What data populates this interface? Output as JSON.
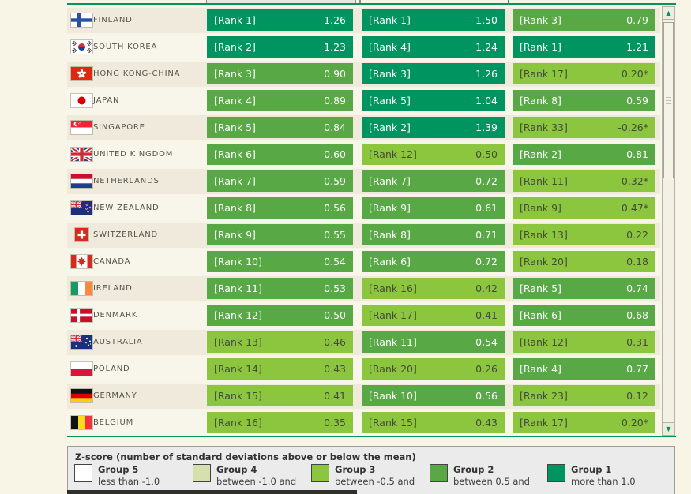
{
  "colors": {
    "group1_dark_green": "#009560",
    "group2_medium_green": "#58a846",
    "group3_light_green": "#8cc63e",
    "group4_pale_green": "#d4e0ad",
    "group5_white": "#ffffff",
    "page_background": "#f8f4e6",
    "table_border_green": "#00945e"
  },
  "icons": {
    "scroll_up": "▲",
    "scroll_down": "▼"
  },
  "table": {
    "rows": [
      {
        "country": "FINLAND",
        "flag": "finland",
        "cells": [
          {
            "rank": "[Rank 1]",
            "value": "1.26",
            "group": 1
          },
          {
            "rank": "[Rank 1]",
            "value": "1.50",
            "group": 1
          },
          {
            "rank": "[Rank 3]",
            "value": "0.79",
            "group": 2
          }
        ]
      },
      {
        "country": "SOUTH KOREA",
        "flag": "southkorea",
        "cells": [
          {
            "rank": "[Rank 2]",
            "value": "1.23",
            "group": 1
          },
          {
            "rank": "[Rank 4]",
            "value": "1.24",
            "group": 1
          },
          {
            "rank": "[Rank 1]",
            "value": "1.21",
            "group": 1
          }
        ]
      },
      {
        "country": "HONG KONG-CHINA",
        "flag": "hongkong",
        "cells": [
          {
            "rank": "[Rank 3]",
            "value": "0.90",
            "group": 2
          },
          {
            "rank": "[Rank 3]",
            "value": "1.26",
            "group": 1
          },
          {
            "rank": "[Rank 17]",
            "value": "0.20*",
            "group": 3
          }
        ]
      },
      {
        "country": "JAPAN",
        "flag": "japan",
        "cells": [
          {
            "rank": "[Rank 4]",
            "value": "0.89",
            "group": 2
          },
          {
            "rank": "[Rank 5]",
            "value": "1.04",
            "group": 1
          },
          {
            "rank": "[Rank 8]",
            "value": "0.59",
            "group": 2
          }
        ]
      },
      {
        "country": "SINGAPORE",
        "flag": "singapore",
        "cells": [
          {
            "rank": "[Rank 5]",
            "value": "0.84",
            "group": 2
          },
          {
            "rank": "[Rank 2]",
            "value": "1.39",
            "group": 1
          },
          {
            "rank": "[Rank 33]",
            "value": "-0.26*",
            "group": 3
          }
        ]
      },
      {
        "country": "UNITED KINGDOM",
        "flag": "uk",
        "cells": [
          {
            "rank": "[Rank 6]",
            "value": "0.60",
            "group": 2
          },
          {
            "rank": "[Rank 12]",
            "value": "0.50",
            "group": 3
          },
          {
            "rank": "[Rank 2]",
            "value": "0.81",
            "group": 2
          }
        ]
      },
      {
        "country": "NETHERLANDS",
        "flag": "netherlands",
        "cells": [
          {
            "rank": "[Rank 7]",
            "value": "0.59",
            "group": 2
          },
          {
            "rank": "[Rank 7]",
            "value": "0.72",
            "group": 2
          },
          {
            "rank": "[Rank 11]",
            "value": "0.32*",
            "group": 3
          }
        ]
      },
      {
        "country": "NEW ZEALAND",
        "flag": "newzealand",
        "cells": [
          {
            "rank": "[Rank 8]",
            "value": "0.56",
            "group": 2
          },
          {
            "rank": "[Rank 9]",
            "value": "0.61",
            "group": 2
          },
          {
            "rank": "[Rank 9]",
            "value": "0.47*",
            "group": 3
          }
        ]
      },
      {
        "country": "SWITZERLAND",
        "flag": "switzerland",
        "cells": [
          {
            "rank": "[Rank 9]",
            "value": "0.55",
            "group": 2
          },
          {
            "rank": "[Rank 8]",
            "value": "0.71",
            "group": 2
          },
          {
            "rank": "[Rank 13]",
            "value": "0.22",
            "group": 3
          }
        ]
      },
      {
        "country": "CANADA",
        "flag": "canada",
        "cells": [
          {
            "rank": "[Rank 10]",
            "value": "0.54",
            "group": 2
          },
          {
            "rank": "[Rank 6]",
            "value": "0.72",
            "group": 2
          },
          {
            "rank": "[Rank 20]",
            "value": "0.18",
            "group": 3
          }
        ]
      },
      {
        "country": "IRELAND",
        "flag": "ireland",
        "cells": [
          {
            "rank": "[Rank 11]",
            "value": "0.53",
            "group": 2
          },
          {
            "rank": "[Rank 16]",
            "value": "0.42",
            "group": 3
          },
          {
            "rank": "[Rank 5]",
            "value": "0.74",
            "group": 2
          }
        ]
      },
      {
        "country": "DENMARK",
        "flag": "denmark",
        "cells": [
          {
            "rank": "[Rank 12]",
            "value": "0.50",
            "group": 2
          },
          {
            "rank": "[Rank 17]",
            "value": "0.41",
            "group": 3
          },
          {
            "rank": "[Rank 6]",
            "value": "0.68",
            "group": 2
          }
        ]
      },
      {
        "country": "AUSTRALIA",
        "flag": "australia",
        "cells": [
          {
            "rank": "[Rank 13]",
            "value": "0.46",
            "group": 3
          },
          {
            "rank": "[Rank 11]",
            "value": "0.54",
            "group": 2
          },
          {
            "rank": "[Rank 12]",
            "value": "0.31",
            "group": 3
          }
        ]
      },
      {
        "country": "POLAND",
        "flag": "poland",
        "cells": [
          {
            "rank": "[Rank 14]",
            "value": "0.43",
            "group": 3
          },
          {
            "rank": "[Rank 20]",
            "value": "0.26",
            "group": 3
          },
          {
            "rank": "[Rank 4]",
            "value": "0.77",
            "group": 2
          }
        ]
      },
      {
        "country": "GERMANY",
        "flag": "germany",
        "cells": [
          {
            "rank": "[Rank 15]",
            "value": "0.41",
            "group": 3
          },
          {
            "rank": "[Rank 10]",
            "value": "0.56",
            "group": 2
          },
          {
            "rank": "[Rank 23]",
            "value": "0.12",
            "group": 3
          }
        ]
      },
      {
        "country": "BELGIUM",
        "flag": "belgium",
        "cells": [
          {
            "rank": "[Rank 16]",
            "value": "0.35",
            "group": 3
          },
          {
            "rank": "[Rank 15]",
            "value": "0.43",
            "group": 3
          },
          {
            "rank": "[Rank 17]",
            "value": "0.20*",
            "group": 3
          }
        ]
      }
    ]
  },
  "legend": {
    "title": "Z-score (number of standard deviations above or below the mean)",
    "groups": [
      {
        "name": "Group 5",
        "range": "less than -1.0",
        "color": "#ffffff"
      },
      {
        "name": "Group 4",
        "range": "between -1.0 and",
        "color": "#d4e0ad"
      },
      {
        "name": "Group 3",
        "range": "between -0.5 and",
        "color": "#8cc63e"
      },
      {
        "name": "Group 2",
        "range": "between 0.5 and",
        "color": "#58a846"
      },
      {
        "name": "Group 1",
        "range": "more than 1.0",
        "color": "#009560"
      }
    ]
  }
}
